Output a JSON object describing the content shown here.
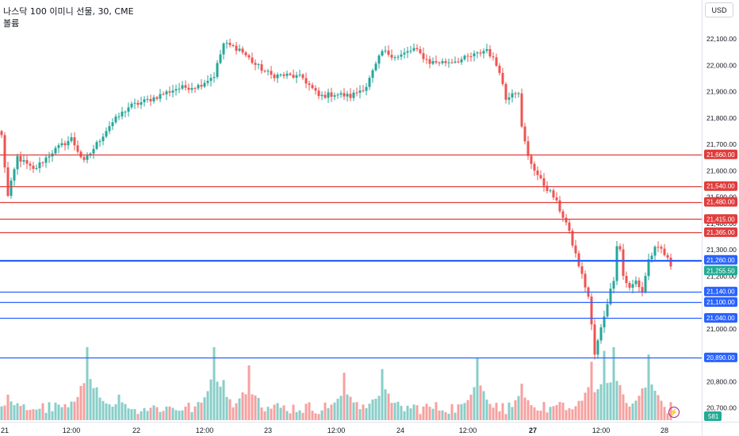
{
  "header": {
    "title": "나스닥 100 이미니 선물, 30, CME",
    "volume_label": "볼륨",
    "currency": "USD"
  },
  "colors": {
    "up": "#26a69a",
    "down": "#ef5350",
    "resistance": "#e03c3c",
    "support": "#2962ff",
    "current_price": "#22ab94",
    "volume_badge": "#22ab94",
    "alert_icon": "#a61e86"
  },
  "icons": {
    "alert": "lightning-icon"
  },
  "chart_data": {
    "type": "candlestick",
    "title": "나스닥 100 이미니 선물, 30, CME",
    "interval": "30",
    "exchange": "CME",
    "currency": "USD",
    "y_axis": {
      "ticks": [
        "22,100.00",
        "22,000.00",
        "21,900.00",
        "21,800.00",
        "21,700.00",
        "21,600.00",
        "21,500.00",
        "21,400.00",
        "21,300.00",
        "21,200.00",
        "21,100.00",
        "21,000.00",
        "20,900.00",
        "20,800.00",
        "20,700.00"
      ],
      "ylim": [
        20650,
        22170
      ]
    },
    "x_axis": {
      "ticks": [
        "21",
        "12:00",
        "22",
        "12:00",
        "23",
        "12:00",
        "24",
        "12:00",
        "27",
        "12:00",
        "28"
      ],
      "bold_ticks": [
        "27"
      ]
    },
    "horizontal_levels": [
      {
        "price": 21660,
        "label": "21,660.00",
        "kind": "resistance"
      },
      {
        "price": 21540,
        "label": "21,540.00",
        "kind": "resistance"
      },
      {
        "price": 21480,
        "label": "21,480.00",
        "kind": "resistance"
      },
      {
        "price": 21415,
        "label": "21,415.00",
        "kind": "resistance"
      },
      {
        "price": 21365,
        "label": "21,365.00",
        "kind": "resistance"
      },
      {
        "price": 21260,
        "label": "21,260.00",
        "kind": "support"
      },
      {
        "price": 21140,
        "label": "21,140.00",
        "kind": "support"
      },
      {
        "price": 21100,
        "label": "21,100.00",
        "kind": "support"
      },
      {
        "price": 21040,
        "label": "21,040.00",
        "kind": "support"
      },
      {
        "price": 20890,
        "label": "20,890.00",
        "kind": "support"
      }
    ],
    "current_price": {
      "price": 21255.5,
      "label": "21,255.50"
    },
    "volume_value": "581",
    "grid": false,
    "price_path": [
      {
        "i": 0,
        "p": 21730
      },
      {
        "i": 2,
        "p": 21500
      },
      {
        "i": 5,
        "p": 21650
      },
      {
        "i": 10,
        "p": 21600
      },
      {
        "i": 16,
        "p": 21670
      },
      {
        "i": 22,
        "p": 21720
      },
      {
        "i": 26,
        "p": 21630
      },
      {
        "i": 30,
        "p": 21700
      },
      {
        "i": 34,
        "p": 21770
      },
      {
        "i": 40,
        "p": 21840
      },
      {
        "i": 47,
        "p": 21870
      },
      {
        "i": 55,
        "p": 21910
      },
      {
        "i": 62,
        "p": 21920
      },
      {
        "i": 67,
        "p": 21960
      },
      {
        "i": 70,
        "p": 22080
      },
      {
        "i": 75,
        "p": 22060
      },
      {
        "i": 80,
        "p": 22000
      },
      {
        "i": 85,
        "p": 21960
      },
      {
        "i": 90,
        "p": 21960
      },
      {
        "i": 95,
        "p": 21950
      },
      {
        "i": 100,
        "p": 21880
      },
      {
        "i": 105,
        "p": 21890
      },
      {
        "i": 110,
        "p": 21880
      },
      {
        "i": 115,
        "p": 21920
      },
      {
        "i": 120,
        "p": 22050
      },
      {
        "i": 125,
        "p": 22030
      },
      {
        "i": 130,
        "p": 22060
      },
      {
        "i": 135,
        "p": 22010
      },
      {
        "i": 140,
        "p": 22010
      },
      {
        "i": 145,
        "p": 22020
      },
      {
        "i": 150,
        "p": 22040
      },
      {
        "i": 153,
        "p": 22060
      },
      {
        "i": 157,
        "p": 21980
      },
      {
        "i": 159,
        "p": 21870
      },
      {
        "i": 161,
        "p": 21900
      },
      {
        "i": 163,
        "p": 21900
      },
      {
        "i": 164,
        "p": 21760
      },
      {
        "i": 166,
        "p": 21650
      },
      {
        "i": 170,
        "p": 21560
      },
      {
        "i": 174,
        "p": 21500
      },
      {
        "i": 178,
        "p": 21400
      },
      {
        "i": 182,
        "p": 21240
      },
      {
        "i": 185,
        "p": 21120
      },
      {
        "i": 187,
        "p": 20900
      },
      {
        "i": 189,
        "p": 21000
      },
      {
        "i": 191,
        "p": 21100
      },
      {
        "i": 193,
        "p": 21190
      },
      {
        "i": 194,
        "p": 21320
      },
      {
        "i": 195,
        "p": 21300
      },
      {
        "i": 196,
        "p": 21200
      },
      {
        "i": 198,
        "p": 21150
      },
      {
        "i": 200,
        "p": 21180
      },
      {
        "i": 202,
        "p": 21140
      },
      {
        "i": 204,
        "p": 21260
      },
      {
        "i": 206,
        "p": 21300
      },
      {
        "i": 208,
        "p": 21300
      },
      {
        "i": 210,
        "p": 21260
      },
      {
        "i": 211,
        "p": 21240
      }
    ],
    "volume_spikes": [
      {
        "i": 2,
        "v": 0.35
      },
      {
        "i": 27,
        "v": 1.0
      },
      {
        "i": 30,
        "v": 0.45
      },
      {
        "i": 37,
        "v": 0.35
      },
      {
        "i": 67,
        "v": 1.0
      },
      {
        "i": 70,
        "v": 0.55
      },
      {
        "i": 78,
        "v": 0.75
      },
      {
        "i": 108,
        "v": 0.65
      },
      {
        "i": 120,
        "v": 0.7
      },
      {
        "i": 150,
        "v": 0.85
      },
      {
        "i": 164,
        "v": 0.5
      },
      {
        "i": 186,
        "v": 0.8
      },
      {
        "i": 190,
        "v": 0.95
      },
      {
        "i": 193,
        "v": 1.0
      },
      {
        "i": 204,
        "v": 0.9
      }
    ]
  }
}
